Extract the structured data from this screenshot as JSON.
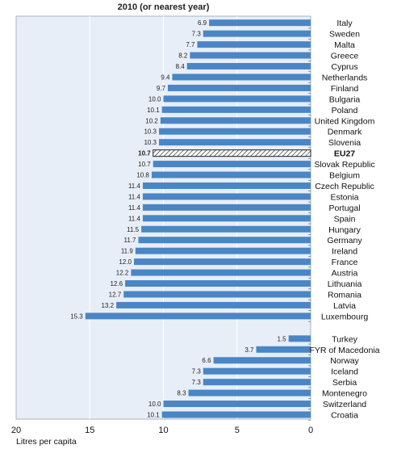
{
  "chart_data": {
    "type": "bar",
    "orientation": "horizontal",
    "title": "2010 (or nearest year)",
    "xlabel": "Litres per capita",
    "xlim": [
      0,
      20
    ],
    "x_axis_direction": "reversed",
    "xticks": [
      20,
      15,
      10,
      5,
      0
    ],
    "xtick_labels": [
      "20",
      "15",
      "10",
      "5",
      "0"
    ],
    "gridlines": true,
    "bar_color": "#4a86c5",
    "highlight_category": "EU27",
    "highlight_style": "hatched",
    "plot_background": "#e8eef7",
    "groups": [
      {
        "categories": [
          "Italy",
          "Sweden",
          "Malta",
          "Greece",
          "Cyprus",
          "Netherlands",
          "Finland",
          "Bulgaria",
          "Poland",
          "United Kingdom",
          "Denmark",
          "Slovenia",
          "EU27",
          "Slovak Republic",
          "Belgium",
          "Czech Republic",
          "Estonia",
          "Portugal",
          "Spain",
          "Hungary",
          "Germany",
          "Ireland",
          "France",
          "Austria",
          "Lithuania",
          "Romania",
          "Latvia",
          "Luxembourg"
        ],
        "values": [
          6.9,
          7.3,
          7.7,
          8.2,
          8.4,
          9.4,
          9.7,
          10.0,
          10.1,
          10.2,
          10.3,
          10.3,
          10.7,
          10.7,
          10.8,
          11.4,
          11.4,
          11.4,
          11.4,
          11.5,
          11.7,
          11.9,
          12.0,
          12.2,
          12.6,
          12.7,
          13.2,
          15.3
        ],
        "value_labels": [
          "6.9",
          "7.3",
          "7.7",
          "8.2",
          "8.4",
          "9.4",
          "9.7",
          "10.0",
          "10.1",
          "10.2",
          "10.3",
          "10.3",
          "10.7",
          "10.7",
          "10.8",
          "11.4",
          "11.4",
          "11.4",
          "11.4",
          "11.5",
          "11.7",
          "11.9",
          "12.0",
          "12.2",
          "12.6",
          "12.7",
          "13.2",
          "15.3"
        ]
      },
      {
        "categories": [
          "Turkey",
          "FYR of Macedonia",
          "Norway",
          "Iceland",
          "Serbia",
          "Montenegro",
          "Switzerland",
          "Croatia"
        ],
        "values": [
          1.5,
          3.7,
          6.6,
          7.3,
          7.3,
          8.3,
          10.0,
          10.1
        ],
        "value_labels": [
          "1.5",
          "3.7",
          "6.6",
          "7.3",
          "7.3",
          "8.3",
          "10.0",
          "10.1"
        ]
      }
    ]
  }
}
